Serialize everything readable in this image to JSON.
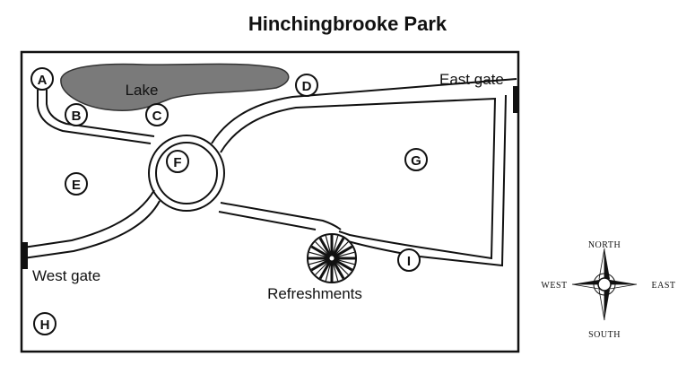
{
  "title": "Hinchingbrooke Park",
  "labels": {
    "lake": "Lake",
    "east_gate": "East gate",
    "west_gate": "West gate",
    "refreshments": "Refreshments"
  },
  "markers": [
    "A",
    "B",
    "C",
    "D",
    "E",
    "F",
    "G",
    "H",
    "I"
  ],
  "compass": {
    "north": "NORTH",
    "south": "SOUTH",
    "east": "EAST",
    "west": "WEST"
  },
  "colors": {
    "lake_fill": "#7a7a7a",
    "ink": "#111111",
    "background": "#ffffff"
  },
  "icons": [
    "refreshments-icon",
    "compass-rose-icon",
    "east-gate-icon",
    "west-gate-icon"
  ]
}
